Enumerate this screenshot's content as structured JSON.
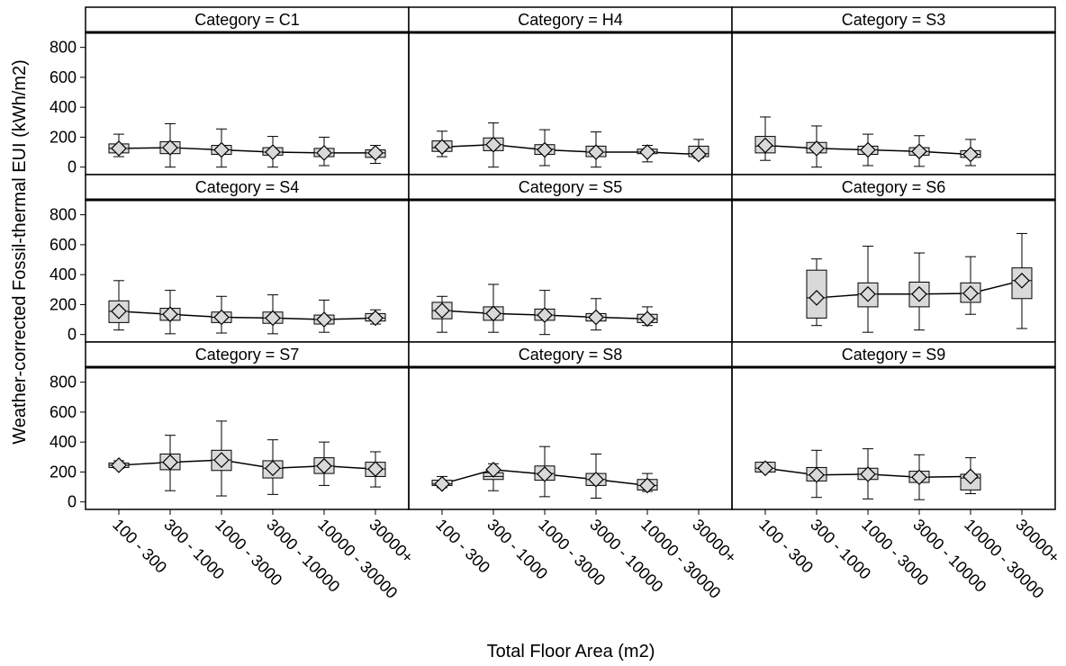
{
  "chart_data": {
    "type": "box",
    "xlabel": "Total Floor Area (m2)",
    "ylabel": "Weather-corrected Fossil-thermal EUI (kWh/m2)",
    "ylim": [
      -50,
      900
    ],
    "yticks": [
      0,
      200,
      400,
      600,
      800
    ],
    "categories": [
      "100 - 300",
      "300 - 1000",
      "1000 - 3000",
      "3000 - 10000",
      "10000 - 30000",
      "30000+"
    ],
    "panels": [
      {
        "title": "Category = C1",
        "boxes": [
          {
            "min": 70,
            "q1": 95,
            "median": 125,
            "q3": 155,
            "max": 220,
            "mean": 125
          },
          {
            "min": 0,
            "q1": 90,
            "median": 130,
            "q3": 170,
            "max": 290,
            "mean": 130
          },
          {
            "min": 0,
            "q1": 85,
            "median": 115,
            "q3": 145,
            "max": 255,
            "mean": 115
          },
          {
            "min": 0,
            "q1": 80,
            "median": 100,
            "q3": 130,
            "max": 205,
            "mean": 100
          },
          {
            "min": 10,
            "q1": 70,
            "median": 95,
            "q3": 125,
            "max": 200,
            "mean": 95
          },
          {
            "min": 25,
            "q1": 65,
            "median": 95,
            "q3": 115,
            "max": 145,
            "mean": 95
          }
        ]
      },
      {
        "title": "Category = H4",
        "boxes": [
          {
            "min": 70,
            "q1": 105,
            "median": 130,
            "q3": 175,
            "max": 240,
            "mean": 135
          },
          {
            "min": 0,
            "q1": 110,
            "median": 150,
            "q3": 195,
            "max": 295,
            "mean": 150
          },
          {
            "min": 10,
            "q1": 85,
            "median": 120,
            "q3": 150,
            "max": 250,
            "mean": 115
          },
          {
            "min": 0,
            "q1": 70,
            "median": 100,
            "q3": 140,
            "max": 235,
            "mean": 100
          },
          {
            "min": 35,
            "q1": 90,
            "median": 100,
            "q3": 120,
            "max": 145,
            "mean": 100
          },
          {
            "min": 60,
            "q1": 70,
            "median": 90,
            "q3": 140,
            "max": 185,
            "mean": 85
          }
        ]
      },
      {
        "title": "Category = S3",
        "boxes": [
          {
            "min": 45,
            "q1": 95,
            "median": 140,
            "q3": 205,
            "max": 335,
            "mean": 145
          },
          {
            "min": 0,
            "q1": 95,
            "median": 125,
            "q3": 165,
            "max": 275,
            "mean": 125
          },
          {
            "min": 10,
            "q1": 85,
            "median": 115,
            "q3": 140,
            "max": 220,
            "mean": 115
          },
          {
            "min": 5,
            "q1": 80,
            "median": 105,
            "q3": 130,
            "max": 210,
            "mean": 105
          },
          {
            "min": 10,
            "q1": 65,
            "median": 85,
            "q3": 110,
            "max": 185,
            "mean": 85
          }
        ]
      },
      {
        "title": "Category = S4",
        "boxes": [
          {
            "min": 30,
            "q1": 80,
            "median": 155,
            "q3": 225,
            "max": 360,
            "mean": 155
          },
          {
            "min": 5,
            "q1": 95,
            "median": 135,
            "q3": 175,
            "max": 295,
            "mean": 135
          },
          {
            "min": 10,
            "q1": 80,
            "median": 115,
            "q3": 150,
            "max": 255,
            "mean": 115
          },
          {
            "min": 5,
            "q1": 75,
            "median": 110,
            "q3": 150,
            "max": 265,
            "mean": 110
          },
          {
            "min": 15,
            "q1": 70,
            "median": 100,
            "q3": 130,
            "max": 230,
            "mean": 100
          },
          {
            "min": 70,
            "q1": 90,
            "median": 110,
            "q3": 140,
            "max": 165,
            "mean": 110
          }
        ]
      },
      {
        "title": "Category = S5",
        "boxes": [
          {
            "min": 15,
            "q1": 105,
            "median": 160,
            "q3": 215,
            "max": 255,
            "mean": 160
          },
          {
            "min": 15,
            "q1": 95,
            "median": 140,
            "q3": 185,
            "max": 335,
            "mean": 140
          },
          {
            "min": 0,
            "q1": 95,
            "median": 130,
            "q3": 170,
            "max": 295,
            "mean": 130
          },
          {
            "min": 30,
            "q1": 90,
            "median": 115,
            "q3": 140,
            "max": 240,
            "mean": 115
          },
          {
            "min": 60,
            "q1": 80,
            "median": 105,
            "q3": 135,
            "max": 185,
            "mean": 105
          }
        ]
      },
      {
        "title": "Category = S6",
        "boxes": [
          null,
          {
            "min": 60,
            "q1": 110,
            "median": 245,
            "q3": 430,
            "max": 505,
            "mean": 245
          },
          {
            "min": 15,
            "q1": 185,
            "median": 270,
            "q3": 345,
            "max": 590,
            "mean": 270
          },
          {
            "min": 30,
            "q1": 185,
            "median": 270,
            "q3": 350,
            "max": 545,
            "mean": 270
          },
          {
            "min": 135,
            "q1": 215,
            "median": 275,
            "q3": 345,
            "max": 520,
            "mean": 275
          },
          {
            "min": 40,
            "q1": 240,
            "median": 360,
            "q3": 445,
            "max": 675,
            "mean": 360
          }
        ]
      },
      {
        "title": "Category = S7",
        "boxes": [
          {
            "min": 225,
            "q1": 230,
            "median": 245,
            "q3": 260,
            "max": 275,
            "mean": 245
          },
          {
            "min": 75,
            "q1": 215,
            "median": 265,
            "q3": 320,
            "max": 445,
            "mean": 265
          },
          {
            "min": 40,
            "q1": 210,
            "median": 280,
            "q3": 345,
            "max": 540,
            "mean": 280
          },
          {
            "min": 50,
            "q1": 160,
            "median": 225,
            "q3": 275,
            "max": 415,
            "mean": 225
          },
          {
            "min": 110,
            "q1": 190,
            "median": 240,
            "q3": 295,
            "max": 400,
            "mean": 240
          },
          {
            "min": 100,
            "q1": 170,
            "median": 220,
            "q3": 265,
            "max": 335,
            "mean": 220
          }
        ]
      },
      {
        "title": "Category = S8",
        "boxes": [
          {
            "min": 95,
            "q1": 110,
            "median": 120,
            "q3": 145,
            "max": 170,
            "mean": 120
          },
          {
            "min": 75,
            "q1": 150,
            "median": 170,
            "q3": 195,
            "max": 255,
            "mean": 215
          },
          {
            "min": 35,
            "q1": 145,
            "median": 190,
            "q3": 240,
            "max": 370,
            "mean": 185
          },
          {
            "min": 25,
            "q1": 110,
            "median": 150,
            "q3": 190,
            "max": 320,
            "mean": 150
          },
          {
            "min": 70,
            "q1": 80,
            "median": 110,
            "q3": 150,
            "max": 190,
            "mean": 110
          }
        ]
      },
      {
        "title": "Category = S9",
        "boxes": [
          {
            "min": 200,
            "q1": 200,
            "median": 225,
            "q3": 265,
            "max": 265,
            "mean": 225
          },
          {
            "min": 30,
            "q1": 140,
            "median": 180,
            "q3": 230,
            "max": 345,
            "mean": 180
          },
          {
            "min": 20,
            "q1": 150,
            "median": 185,
            "q3": 225,
            "max": 355,
            "mean": 185
          },
          {
            "min": 15,
            "q1": 130,
            "median": 165,
            "q3": 205,
            "max": 315,
            "mean": 165
          },
          {
            "min": 55,
            "q1": 80,
            "median": 160,
            "q3": 185,
            "max": 295,
            "mean": 170
          }
        ]
      }
    ],
    "colors": {
      "box_fill": "#d9d9d9",
      "stroke": "#000000"
    },
    "grid": false,
    "legend": "none"
  }
}
